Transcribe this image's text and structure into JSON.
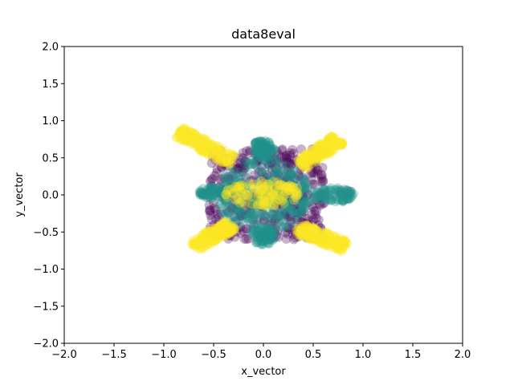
{
  "chart_data": {
    "type": "scatter",
    "title": "data8eval",
    "xlabel": "x_vector",
    "ylabel": "y_vector",
    "xlim": [
      -2.0,
      2.0
    ],
    "ylim": [
      -2.0,
      2.0
    ],
    "x_ticks": [
      "−2.0",
      "−1.5",
      "−1.0",
      "−0.5",
      "0.0",
      "0.5",
      "1.0",
      "1.5",
      "2.0"
    ],
    "y_ticks": [
      "−2.0",
      "−1.5",
      "−1.0",
      "−0.5",
      "0.0",
      "0.5",
      "1.0",
      "1.5",
      "2.0"
    ],
    "grid": false,
    "legend": "none",
    "marker_alpha": 0.3,
    "series": [
      {
        "color": "#440154",
        "regions": [
          {
            "shape": "rect",
            "x_range": [
              -0.55,
              0.62
            ],
            "y_range": [
              -0.6,
              0.62
            ]
          }
        ]
      },
      {
        "color": "#21918c",
        "regions": [
          {
            "shape": "ellipse",
            "cx": 0.0,
            "cy": 0.0,
            "rx": 0.48,
            "ry": 0.5
          },
          {
            "shape": "ellipse",
            "cx": 0.0,
            "cy": 0.62,
            "rx": 0.12,
            "ry": 0.12
          },
          {
            "shape": "ellipse",
            "cx": 0.0,
            "cy": -0.55,
            "rx": 0.12,
            "ry": 0.12
          },
          {
            "shape": "ellipse",
            "cx": -0.5,
            "cy": 0.03,
            "rx": 0.15,
            "ry": 0.08
          },
          {
            "shape": "ellipse",
            "cx": 0.7,
            "cy": 0.0,
            "rx": 0.22,
            "ry": 0.1
          }
        ]
      },
      {
        "color": "#fde725",
        "regions": [
          {
            "shape": "ellipse",
            "cx": 0.0,
            "cy": 0.02,
            "rx": 0.38,
            "ry": 0.17
          },
          {
            "shape": "arm",
            "from": [
              -0.3,
              0.45
            ],
            "to": [
              -0.85,
              0.85
            ],
            "width": 0.16
          },
          {
            "shape": "arm",
            "from": [
              0.38,
              0.4
            ],
            "to": [
              0.75,
              0.75
            ],
            "width": 0.16
          },
          {
            "shape": "arm",
            "from": [
              -0.32,
              -0.4
            ],
            "to": [
              -0.7,
              -0.7
            ],
            "width": 0.16
          },
          {
            "shape": "arm",
            "from": [
              0.35,
              -0.45
            ],
            "to": [
              0.82,
              -0.7
            ],
            "width": 0.16
          }
        ]
      }
    ]
  }
}
